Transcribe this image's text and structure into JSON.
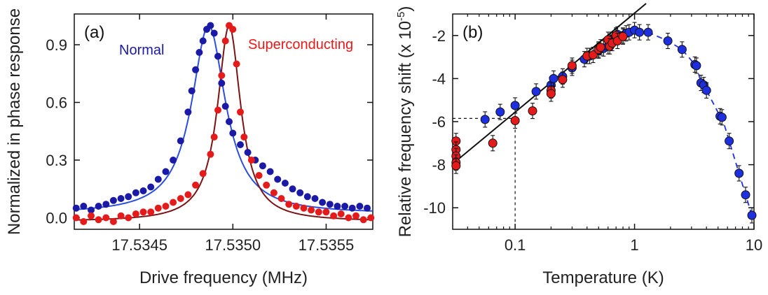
{
  "chart_data": [
    {
      "panel": "(a)",
      "type": "line",
      "xlabel": "Drive frequency (MHz)",
      "ylabel": "Normalized in phase response",
      "xlim": [
        17.53415,
        17.53575
      ],
      "ylim": [
        -0.06,
        1.06
      ],
      "xticks": [
        "17.5345",
        "17.5350",
        "17.5355"
      ],
      "xtick_values": [
        17.5345,
        17.535,
        17.5355
      ],
      "yticks": [
        "0.0",
        "0.3",
        "0.6",
        "0.9"
      ],
      "ytick_values": [
        0.0,
        0.3,
        0.6,
        0.9
      ],
      "grid": false,
      "series": [
        {
          "name": "Normal",
          "color": "#1a1aa6",
          "fit_color": "#2b4ee0",
          "center": 17.53487,
          "halfwidth": 0.00011,
          "peak": 1.0,
          "baseline": 0.02,
          "points": [
            [
              17.53416,
              0.05
            ],
            [
              17.5342,
              0.06
            ],
            [
              17.53424,
              0.04
            ],
            [
              17.53428,
              0.06
            ],
            [
              17.53432,
              0.07
            ],
            [
              17.53436,
              0.09
            ],
            [
              17.5344,
              0.1
            ],
            [
              17.53444,
              0.11
            ],
            [
              17.53448,
              0.13
            ],
            [
              17.53452,
              0.14
            ],
            [
              17.53456,
              0.16
            ],
            [
              17.5346,
              0.2
            ],
            [
              17.53464,
              0.24
            ],
            [
              17.53468,
              0.3
            ],
            [
              17.53472,
              0.4
            ],
            [
              17.53476,
              0.55
            ],
            [
              17.53478,
              0.66
            ],
            [
              17.5348,
              0.77
            ],
            [
              17.53482,
              0.86
            ],
            [
              17.53484,
              0.92
            ],
            [
              17.53486,
              0.98
            ],
            [
              17.53488,
              1.0
            ],
            [
              17.5349,
              0.96
            ],
            [
              17.53492,
              0.84
            ],
            [
              17.53494,
              0.7
            ],
            [
              17.53496,
              0.58
            ],
            [
              17.53498,
              0.5
            ],
            [
              17.535,
              0.44
            ],
            [
              17.53504,
              0.38
            ],
            [
              17.53508,
              0.34
            ],
            [
              17.53512,
              0.3
            ],
            [
              17.53516,
              0.27
            ],
            [
              17.5352,
              0.24
            ],
            [
              17.53524,
              0.2
            ],
            [
              17.53528,
              0.18
            ],
            [
              17.53532,
              0.15
            ],
            [
              17.53536,
              0.13
            ],
            [
              17.5354,
              0.11
            ],
            [
              17.53544,
              0.1
            ],
            [
              17.53548,
              0.08
            ],
            [
              17.53552,
              0.07
            ],
            [
              17.53556,
              0.06
            ],
            [
              17.5356,
              0.06
            ],
            [
              17.53564,
              0.05
            ],
            [
              17.53568,
              0.06
            ],
            [
              17.53572,
              0.05
            ]
          ]
        },
        {
          "name": "Superconducting",
          "color": "#e51a1a",
          "fit_color": "#7a1414",
          "center": 17.53498,
          "halfwidth": 7.5e-05,
          "peak": 1.0,
          "baseline": -0.02,
          "points": [
            [
              17.53416,
              0.0
            ],
            [
              17.5342,
              -0.02
            ],
            [
              17.53424,
              0.01
            ],
            [
              17.53428,
              -0.01
            ],
            [
              17.53432,
              0.0
            ],
            [
              17.53436,
              -0.02
            ],
            [
              17.5344,
              0.01
            ],
            [
              17.53444,
              0.0
            ],
            [
              17.53448,
              0.02
            ],
            [
              17.53452,
              0.03
            ],
            [
              17.53456,
              0.03
            ],
            [
              17.5346,
              0.05
            ],
            [
              17.53464,
              0.06
            ],
            [
              17.53468,
              0.08
            ],
            [
              17.53472,
              0.1
            ],
            [
              17.53476,
              0.12
            ],
            [
              17.5348,
              0.17
            ],
            [
              17.53484,
              0.23
            ],
            [
              17.53488,
              0.33
            ],
            [
              17.5349,
              0.42
            ],
            [
              17.53492,
              0.56
            ],
            [
              17.53494,
              0.74
            ],
            [
              17.53496,
              0.92
            ],
            [
              17.53498,
              1.0
            ],
            [
              17.535,
              0.98
            ],
            [
              17.53502,
              0.8
            ],
            [
              17.53504,
              0.55
            ],
            [
              17.53506,
              0.42
            ],
            [
              17.5351,
              0.3
            ],
            [
              17.53514,
              0.22
            ],
            [
              17.53518,
              0.17
            ],
            [
              17.53522,
              0.13
            ],
            [
              17.53526,
              0.1
            ],
            [
              17.5353,
              0.07
            ],
            [
              17.53534,
              0.06
            ],
            [
              17.53538,
              0.05
            ],
            [
              17.53542,
              0.04
            ],
            [
              17.53546,
              0.03
            ],
            [
              17.5355,
              0.03
            ],
            [
              17.53554,
              0.01
            ],
            [
              17.53558,
              0.02
            ],
            [
              17.53562,
              0.0
            ],
            [
              17.53566,
              0.01
            ],
            [
              17.5357,
              -0.01
            ],
            [
              17.53574,
              0.0
            ]
          ]
        }
      ]
    },
    {
      "panel": "(b)",
      "type": "scatter",
      "xlabel": "Temperature (K)",
      "ylabel": "Relative frequency shift (x 10",
      "ylabel_exp": "-5",
      "ylabel_close": ")",
      "xscale": "log",
      "xlim": [
        0.03,
        10
      ],
      "ylim": [
        -11,
        -1
      ],
      "xticks": [
        "0.1",
        "1",
        "10"
      ],
      "xtick_values": [
        0.1,
        1,
        10
      ],
      "yticks": [
        "-2",
        "-4",
        "-6",
        "-8",
        "-10"
      ],
      "ytick_values": [
        -2,
        -4,
        -6,
        -8,
        -10
      ],
      "grid": false,
      "reference_point": [
        0.1,
        -5.85
      ],
      "log_fit": {
        "slope": 4.6,
        "intercept": -0.96,
        "x_range": [
          0.03,
          1.25
        ]
      },
      "series": [
        {
          "color": "#1e2fe0",
          "points": [
            [
              0.056,
              -5.9
            ],
            [
              0.075,
              -5.55
            ],
            [
              0.1,
              -5.25
            ],
            [
              0.15,
              -4.6
            ],
            [
              0.2,
              -4.3
            ],
            [
              0.21,
              -4.0
            ],
            [
              0.25,
              -3.9
            ],
            [
              0.3,
              -3.5
            ],
            [
              0.38,
              -3.1
            ],
            [
              0.42,
              -2.95
            ],
            [
              0.5,
              -2.7
            ],
            [
              0.55,
              -2.6
            ],
            [
              0.6,
              -2.5
            ],
            [
              0.62,
              -2.3
            ],
            [
              0.65,
              -2.2
            ],
            [
              0.7,
              -2.05
            ],
            [
              0.72,
              -1.95
            ],
            [
              0.8,
              -2.0
            ],
            [
              0.85,
              -1.9
            ],
            [
              0.9,
              -1.85
            ],
            [
              1.0,
              -1.75
            ],
            [
              1.1,
              -1.85
            ],
            [
              1.3,
              -1.85
            ],
            [
              1.9,
              -2.25
            ],
            [
              2.5,
              -2.65
            ],
            [
              3.2,
              -3.35
            ],
            [
              3.3,
              -3.4
            ],
            [
              3.6,
              -4.2
            ],
            [
              3.8,
              -4.3
            ],
            [
              4.0,
              -4.55
            ],
            [
              5.2,
              -5.75
            ],
            [
              5.4,
              -5.8
            ],
            [
              6.2,
              -6.9
            ],
            [
              7.5,
              -8.4
            ],
            [
              8.5,
              -9.4
            ],
            [
              9.6,
              -10.35
            ]
          ]
        },
        {
          "color": "#e51a1a",
          "points": [
            [
              0.032,
              -6.9
            ],
            [
              0.032,
              -7.3
            ],
            [
              0.032,
              -7.6
            ],
            [
              0.032,
              -7.9
            ],
            [
              0.032,
              -8.05
            ],
            [
              0.065,
              -7.0
            ],
            [
              0.1,
              -5.95
            ],
            [
              0.14,
              -5.5
            ],
            [
              0.2,
              -4.55
            ],
            [
              0.2,
              -4.7
            ],
            [
              0.25,
              -4.05
            ],
            [
              0.3,
              -3.4
            ],
            [
              0.4,
              -2.95
            ],
            [
              0.45,
              -2.9
            ],
            [
              0.5,
              -2.65
            ],
            [
              0.52,
              -2.55
            ],
            [
              0.6,
              -2.2
            ],
            [
              0.62,
              -2.5
            ],
            [
              0.65,
              -2.35
            ],
            [
              0.7,
              -2.0
            ],
            [
              0.72,
              -2.25
            ],
            [
              0.8,
              -2.05
            ]
          ]
        }
      ]
    }
  ]
}
